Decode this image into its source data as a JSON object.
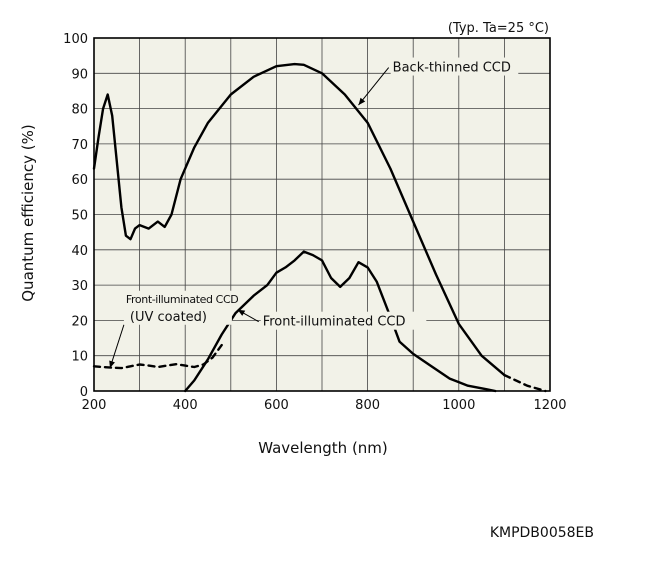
{
  "condition": "(Typ. Ta=25 °C)",
  "figure_code": "KMPDB0058EB",
  "chart_data": {
    "type": "line",
    "xlabel": "Wavelength (nm)",
    "ylabel": "Quantum efficiency (%)",
    "xlim": [
      200,
      1200
    ],
    "ylim": [
      0,
      100
    ],
    "xticks": [
      200,
      400,
      600,
      800,
      1000,
      1200
    ],
    "yticks": [
      0,
      10,
      20,
      30,
      40,
      50,
      60,
      70,
      80,
      90,
      100
    ],
    "grid": true,
    "series": [
      {
        "name": "Back-thinned CCD",
        "style": "solid",
        "points": [
          [
            200,
            63
          ],
          [
            210,
            72
          ],
          [
            220,
            80
          ],
          [
            230,
            84
          ],
          [
            240,
            78
          ],
          [
            250,
            65
          ],
          [
            260,
            52
          ],
          [
            270,
            44
          ],
          [
            280,
            43
          ],
          [
            290,
            46
          ],
          [
            300,
            47
          ],
          [
            320,
            46
          ],
          [
            340,
            48
          ],
          [
            355,
            46.5
          ],
          [
            370,
            50
          ],
          [
            390,
            60
          ],
          [
            420,
            69
          ],
          [
            450,
            76
          ],
          [
            500,
            84
          ],
          [
            550,
            89
          ],
          [
            600,
            92
          ],
          [
            640,
            92.6
          ],
          [
            660,
            92.4
          ],
          [
            700,
            90
          ],
          [
            750,
            84
          ],
          [
            800,
            76
          ],
          [
            850,
            63
          ],
          [
            900,
            48
          ],
          [
            950,
            33
          ],
          [
            1000,
            19
          ],
          [
            1050,
            10
          ],
          [
            1100,
            4.5
          ]
        ]
      },
      {
        "name": "Back-thinned CCD",
        "style": "dashed",
        "points": [
          [
            1100,
            4.5
          ],
          [
            1150,
            1.5
          ],
          [
            1190,
            0
          ]
        ]
      },
      {
        "name": "Front-illuminated CCD",
        "style": "solid",
        "points": [
          [
            400,
            0
          ],
          [
            420,
            3
          ],
          [
            450,
            9
          ],
          [
            480,
            16
          ],
          [
            510,
            22
          ],
          [
            550,
            27
          ],
          [
            580,
            30
          ],
          [
            600,
            33.5
          ],
          [
            620,
            35
          ],
          [
            640,
            37
          ],
          [
            660,
            39.5
          ],
          [
            680,
            38.5
          ],
          [
            700,
            37
          ],
          [
            720,
            32
          ],
          [
            740,
            29.5
          ],
          [
            760,
            32
          ],
          [
            780,
            36.5
          ],
          [
            800,
            35
          ],
          [
            820,
            31
          ],
          [
            850,
            21
          ],
          [
            870,
            14
          ],
          [
            900,
            10.5
          ],
          [
            940,
            7
          ],
          [
            980,
            3.5
          ],
          [
            1020,
            1.5
          ],
          [
            1060,
            0.5
          ],
          [
            1080,
            0
          ]
        ]
      },
      {
        "name": "Front-illuminated CCD (UV coated)",
        "style": "dashed",
        "points": [
          [
            200,
            7
          ],
          [
            220,
            6.8
          ],
          [
            240,
            6.6
          ],
          [
            260,
            6.5
          ],
          [
            280,
            7
          ],
          [
            300,
            7.5
          ],
          [
            320,
            7.2
          ],
          [
            340,
            6.8
          ],
          [
            360,
            7.2
          ],
          [
            380,
            7.6
          ],
          [
            400,
            7.2
          ],
          [
            420,
            6.8
          ],
          [
            440,
            7.5
          ],
          [
            460,
            9.5
          ],
          [
            480,
            13
          ]
        ]
      }
    ],
    "annotations": [
      {
        "lines": [
          "Back-thinned CCD"
        ],
        "x": 855,
        "y": 90.5,
        "pointer_to": [
          780,
          81
        ]
      },
      {
        "lines": [
          "Front-illuminated CCD"
        ],
        "x": 570,
        "y": 18.5,
        "pointer_to": [
          515,
          23
        ]
      },
      {
        "lines": [
          "Front-illuminated CCD",
          "(UV coated)"
        ],
        "x": 270,
        "y": 25,
        "pointer_to": [
          235,
          6.5
        ]
      }
    ]
  }
}
